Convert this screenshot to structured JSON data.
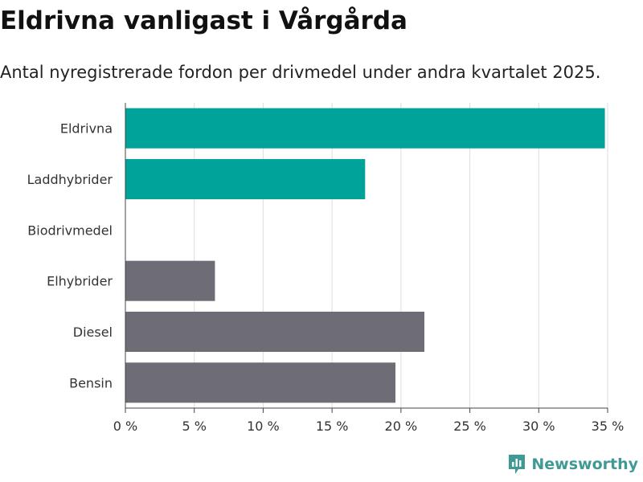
{
  "header": {
    "title": "Eldrivna vanligast i Vårgårda",
    "subtitle": "Antal nyregistrerade fordon per drivmedel under andra kvartalet 2025."
  },
  "chart_data": {
    "type": "bar",
    "orientation": "horizontal",
    "categories": [
      "Eldrivna",
      "Laddhybrider",
      "Biodrivmedel",
      "Elhybrider",
      "Diesel",
      "Bensin"
    ],
    "values": [
      34.8,
      17.4,
      0,
      6.5,
      21.7,
      19.6
    ],
    "colors": [
      "#00a399",
      "#00a399",
      "#00a399",
      "#6e6d75",
      "#6e6d75",
      "#6e6d75"
    ],
    "xlim": [
      0,
      35
    ],
    "xticks": [
      0,
      5,
      10,
      15,
      20,
      25,
      30,
      35
    ],
    "xtick_labels": [
      "0 %",
      "5 %",
      "10 %",
      "15 %",
      "20 %",
      "25 %",
      "30 %",
      "35 %"
    ],
    "grid": true
  },
  "branding": {
    "logo_text": "Newsworthy",
    "logo_color": "#3f9a95",
    "logo_icon": "bar-chart-icon"
  }
}
